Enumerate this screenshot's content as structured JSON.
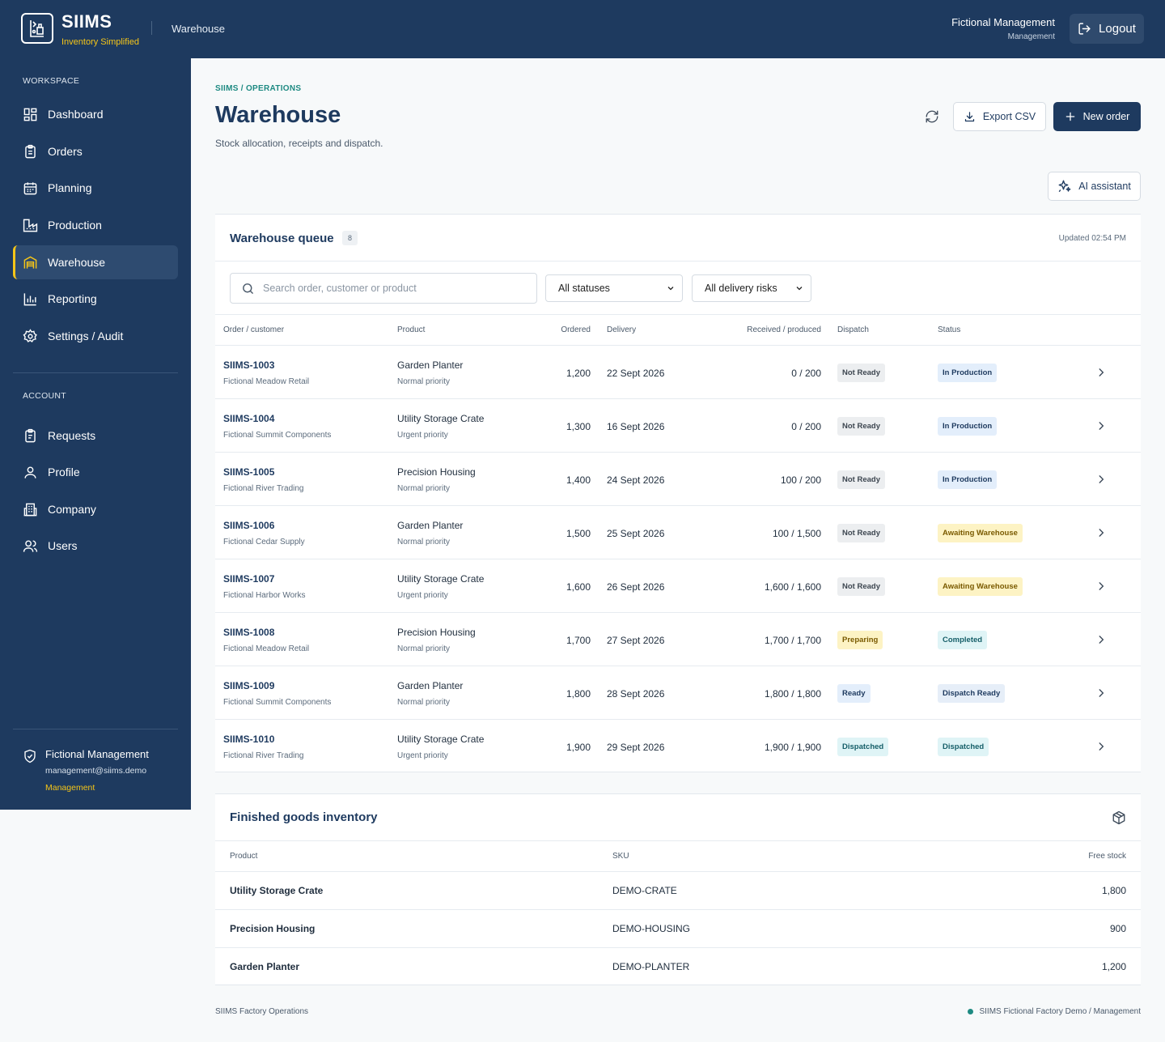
{
  "app": {
    "name": "SIIMS",
    "tagline": "Inventory Simplified",
    "current_page": "Warehouse"
  },
  "topbar": {
    "user_name": "Fictional Management",
    "user_role": "Management",
    "logout_label": "Logout"
  },
  "sidebar": {
    "workspace_label": "WORKSPACE",
    "workspace_items": [
      {
        "label": "Dashboard",
        "icon": "dashboard-icon"
      },
      {
        "label": "Orders",
        "icon": "clipboard-icon"
      },
      {
        "label": "Planning",
        "icon": "calendar-icon"
      },
      {
        "label": "Production",
        "icon": "factory-icon"
      },
      {
        "label": "Warehouse",
        "icon": "warehouse-icon",
        "active": true
      },
      {
        "label": "Reporting",
        "icon": "bar-chart-icon"
      },
      {
        "label": "Settings / Audit",
        "icon": "gear-icon"
      }
    ],
    "account_label": "ACCOUNT",
    "account_items": [
      {
        "label": "Requests",
        "icon": "clipboard-list-icon"
      },
      {
        "label": "Profile",
        "icon": "user-icon"
      },
      {
        "label": "Company",
        "icon": "building-icon"
      },
      {
        "label": "Users",
        "icon": "users-icon"
      }
    ],
    "user": {
      "name": "Fictional Management",
      "email": "management@siims.demo",
      "role": "Management"
    }
  },
  "header": {
    "breadcrumb": "SIIMS / OPERATIONS",
    "title": "Warehouse",
    "subtitle": "Stock allocation, receipts and dispatch.",
    "export_label": "Export CSV",
    "new_order_label": "New order",
    "ai_label": "AI assistant"
  },
  "queue": {
    "title": "Warehouse queue",
    "count": "8",
    "updated": "Updated 02:54 PM",
    "search_placeholder": "Search order, customer or product",
    "status_filter": "All statuses",
    "risk_filter": "All delivery risks",
    "columns": {
      "order": "Order / customer",
      "product": "Product",
      "ordered": "Ordered",
      "delivery": "Delivery",
      "received": "Received / produced",
      "dispatch": "Dispatch",
      "status": "Status"
    },
    "rows": [
      {
        "order": "SIIMS-1003",
        "customer": "Fictional Meadow Retail",
        "product": "Garden Planter",
        "priority": "Normal priority",
        "ordered": "1,200",
        "delivery": "22 Sept 2026",
        "received": "0 / 200",
        "dispatch": "Not Ready",
        "status": "In Production"
      },
      {
        "order": "SIIMS-1004",
        "customer": "Fictional Summit Components",
        "product": "Utility Storage Crate",
        "priority": "Urgent priority",
        "ordered": "1,300",
        "delivery": "16 Sept 2026",
        "received": "0 / 200",
        "dispatch": "Not Ready",
        "status": "In Production"
      },
      {
        "order": "SIIMS-1005",
        "customer": "Fictional River Trading",
        "product": "Precision Housing",
        "priority": "Normal priority",
        "ordered": "1,400",
        "delivery": "24 Sept 2026",
        "received": "100 / 200",
        "dispatch": "Not Ready",
        "status": "In Production"
      },
      {
        "order": "SIIMS-1006",
        "customer": "Fictional Cedar Supply",
        "product": "Garden Planter",
        "priority": "Normal priority",
        "ordered": "1,500",
        "delivery": "25 Sept 2026",
        "received": "100 / 1,500",
        "dispatch": "Not Ready",
        "status": "Awaiting Warehouse"
      },
      {
        "order": "SIIMS-1007",
        "customer": "Fictional Harbor Works",
        "product": "Utility Storage Crate",
        "priority": "Urgent priority",
        "ordered": "1,600",
        "delivery": "26 Sept 2026",
        "received": "1,600 / 1,600",
        "dispatch": "Not Ready",
        "status": "Awaiting Warehouse"
      },
      {
        "order": "SIIMS-1008",
        "customer": "Fictional Meadow Retail",
        "product": "Precision Housing",
        "priority": "Normal priority",
        "ordered": "1,700",
        "delivery": "27 Sept 2026",
        "received": "1,700 / 1,700",
        "dispatch": "Preparing",
        "status": "Completed"
      },
      {
        "order": "SIIMS-1009",
        "customer": "Fictional Summit Components",
        "product": "Garden Planter",
        "priority": "Normal priority",
        "ordered": "1,800",
        "delivery": "28 Sept 2026",
        "received": "1,800 / 1,800",
        "dispatch": "Ready",
        "status": "Dispatch Ready"
      },
      {
        "order": "SIIMS-1010",
        "customer": "Fictional River Trading",
        "product": "Utility Storage Crate",
        "priority": "Urgent priority",
        "ordered": "1,900",
        "delivery": "29 Sept 2026",
        "received": "1,900 / 1,900",
        "dispatch": "Dispatched",
        "status": "Dispatched"
      }
    ]
  },
  "badge_colors": {
    "Not Ready": {
      "bg": "#eceef0",
      "fg": "#3d4650"
    },
    "Preparing": {
      "bg": "#fdf3c4",
      "fg": "#7a5a00"
    },
    "Ready": {
      "bg": "#e3eefb",
      "fg": "#1e3a5f"
    },
    "Dispatched": {
      "bg": "#dff4f6",
      "fg": "#155e68"
    },
    "In Production": {
      "bg": "#e3eefb",
      "fg": "#1e3a5f"
    },
    "Awaiting Warehouse": {
      "bg": "#fdf3c4",
      "fg": "#7a5a00"
    },
    "Completed": {
      "bg": "#dff4f6",
      "fg": "#155e68"
    },
    "Dispatch Ready": {
      "bg": "#e6eef8",
      "fg": "#1e3a5f"
    }
  },
  "inventory": {
    "title": "Finished goods inventory",
    "columns": {
      "product": "Product",
      "sku": "SKU",
      "free_stock": "Free stock"
    },
    "rows": [
      {
        "product": "Utility Storage Crate",
        "sku": "DEMO-CRATE",
        "free_stock": "1,800"
      },
      {
        "product": "Precision Housing",
        "sku": "DEMO-HOUSING",
        "free_stock": "900"
      },
      {
        "product": "Garden Planter",
        "sku": "DEMO-PLANTER",
        "free_stock": "1,200"
      }
    ]
  },
  "footer": {
    "left": "SIIMS Factory Operations",
    "right": "SIIMS Fictional Factory Demo / Management"
  },
  "colors": {
    "navy": "#1e3a5f",
    "accent_yellow": "#f5c518",
    "teal": "#1e8a82"
  }
}
